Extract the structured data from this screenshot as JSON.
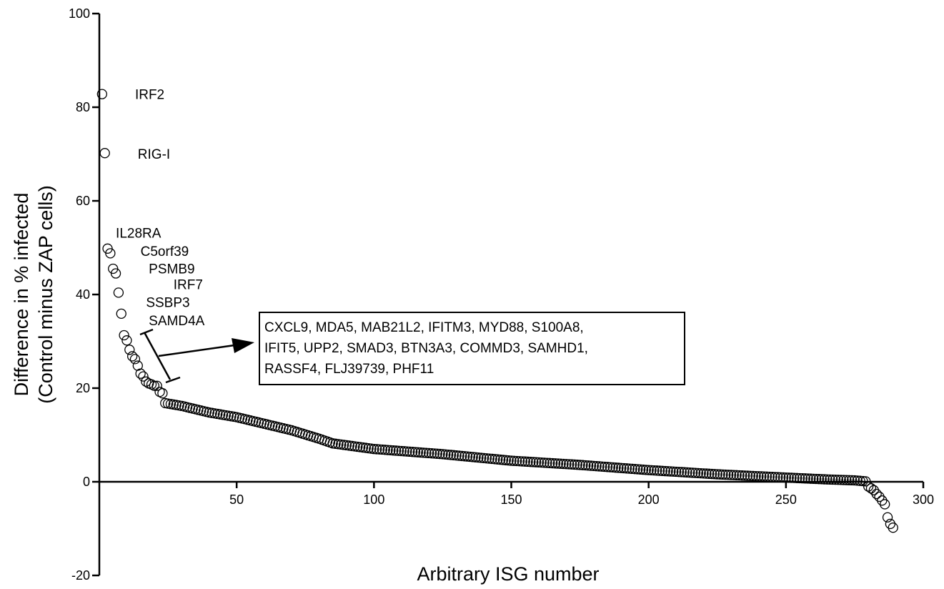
{
  "chart_data": {
    "type": "scatter",
    "title": "",
    "xlabel": "Arbitrary ISG number",
    "ylabel_lines": [
      "Difference in % infected",
      "(Control minus ZAP cells)"
    ],
    "xlim": [
      0,
      300
    ],
    "ylim": [
      -20,
      100
    ],
    "xticks": [
      "50",
      "100",
      "150",
      "200",
      "250",
      "300"
    ],
    "yticks": [
      "100",
      "80",
      "60",
      "40",
      "20",
      "0",
      "-20"
    ],
    "grid": false,
    "marker_color": "#000000",
    "highlight_color": "#cc2200",
    "highlight_x": [
      83,
      84,
      85
    ],
    "anchors": [
      [
        1,
        82.8
      ],
      [
        2,
        70.2
      ],
      [
        3,
        49.8
      ],
      [
        4,
        48.8
      ],
      [
        5,
        45.5
      ],
      [
        6,
        44.5
      ],
      [
        7,
        40.4
      ],
      [
        8,
        35.9
      ],
      [
        9,
        31.3
      ],
      [
        10,
        30.2
      ],
      [
        11,
        28.2
      ],
      [
        12,
        26.8
      ],
      [
        13,
        26.2
      ],
      [
        14,
        24.8
      ],
      [
        15,
        23.1
      ],
      [
        16,
        22.5
      ],
      [
        17,
        21.4
      ],
      [
        18,
        21.0
      ],
      [
        19,
        20.8
      ],
      [
        20,
        20.5
      ],
      [
        21,
        20.5
      ],
      [
        22,
        19.2
      ],
      [
        23,
        18.9
      ],
      [
        24,
        16.8
      ],
      [
        25,
        16.7
      ],
      [
        30,
        16.2
      ],
      [
        40,
        14.8
      ],
      [
        50,
        13.8
      ],
      [
        60,
        12.4
      ],
      [
        70,
        11.0
      ],
      [
        80,
        9.2
      ],
      [
        85,
        8.2
      ],
      [
        100,
        7.0
      ],
      [
        125,
        5.9
      ],
      [
        150,
        4.5
      ],
      [
        175,
        3.6
      ],
      [
        200,
        2.5
      ],
      [
        225,
        1.6
      ],
      [
        250,
        0.9
      ],
      [
        265,
        0.5
      ],
      [
        275,
        0.3
      ],
      [
        279,
        0.1
      ],
      [
        280,
        -1.0
      ],
      [
        281,
        -1.4
      ],
      [
        282,
        -1.8
      ],
      [
        283,
        -2.6
      ],
      [
        284,
        -3.2
      ],
      [
        285,
        -4.0
      ],
      [
        286,
        -4.8
      ],
      [
        287,
        -7.6
      ],
      [
        288,
        -9.0
      ],
      [
        289,
        -9.8
      ]
    ],
    "annotations": [
      {
        "text": "IRF2",
        "x": 13,
        "y": 82.8
      },
      {
        "text": "RIG-I",
        "x": 14,
        "y": 70.1
      },
      {
        "text": "IL28RA",
        "x": 6,
        "y": 53.2
      },
      {
        "text": "C5orf39",
        "x": 15,
        "y": 49.3
      },
      {
        "text": "PSMB9",
        "x": 18,
        "y": 45.6
      },
      {
        "text": "IRF7",
        "x": 27,
        "y": 42.2
      },
      {
        "text": "SSBP3",
        "x": 17,
        "y": 38.4
      },
      {
        "text": "SAMD4A",
        "x": 18,
        "y": 34.5
      }
    ],
    "group_box_lines": [
      "CXCL9, MDA5, MAB21L2, IFITM3, MYD88, S100A8,",
      "IFIT5, UPP2, SMAD3, BTN3A3, COMMD3, SAMHD1,",
      "RASSF4, FLJ39739, PHF11"
    ]
  }
}
